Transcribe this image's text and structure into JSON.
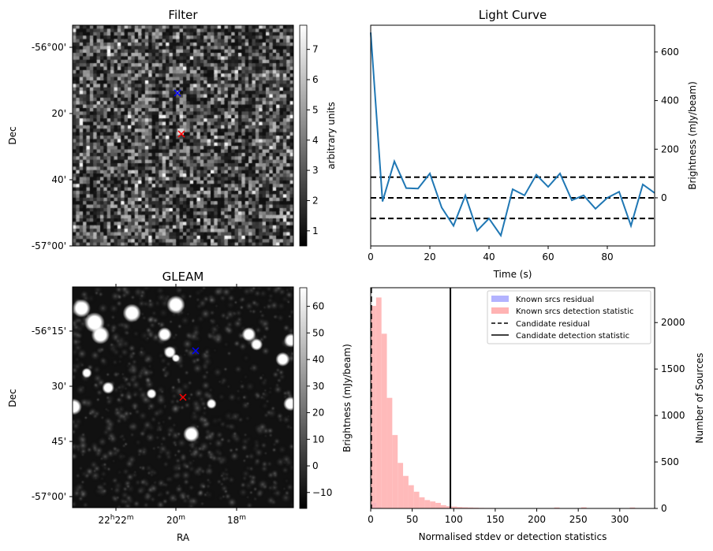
{
  "panels": {
    "filter": {
      "title": "Filter",
      "ylabel": "Dec",
      "dec_ticks": [
        "-56°00'",
        "20'",
        "40'",
        "-57°00'"
      ],
      "colorbar": {
        "label": "arbitrary units",
        "ticks": [
          "1",
          "2",
          "3",
          "4",
          "5",
          "6",
          "7"
        ],
        "range": [
          0.5,
          7.8
        ]
      },
      "markers": [
        {
          "name": "known-source",
          "color": "#0000ff"
        },
        {
          "name": "candidate",
          "color": "#ff0000"
        }
      ]
    },
    "gleam": {
      "title": "GLEAM",
      "ylabel": "Dec",
      "xlabel": "RA",
      "dec_ticks": [
        "-56°15'",
        "30'",
        "45'",
        "-57°00'"
      ],
      "ra_ticks": [
        [
          "22",
          "h",
          "22",
          "m"
        ],
        [
          "20",
          "",
          "",
          "m"
        ],
        [
          "18",
          "",
          "",
          "m"
        ]
      ],
      "colorbar": {
        "label": "Brightness (mJy/beam)",
        "ticks": [
          "60",
          "50",
          "40",
          "30",
          "20",
          "10",
          "0",
          "−10"
        ],
        "range": [
          -16,
          67
        ]
      },
      "markers": [
        {
          "name": "known-source",
          "color": "#0000ff"
        },
        {
          "name": "candidate",
          "color": "#ff0000"
        }
      ]
    }
  },
  "chart_data": [
    {
      "type": "line",
      "title": "Light Curve",
      "xlabel": "Time (s)",
      "ylabel": "Brightness (mJy/beam)",
      "xlim": [
        0,
        96
      ],
      "ylim": [
        -198,
        710
      ],
      "xticks": [
        0,
        20,
        40,
        60,
        80
      ],
      "yticks": [
        0,
        200,
        400,
        600
      ],
      "series": [
        {
          "name": "light curve",
          "color": "#1f77b4",
          "x": [
            0,
            4,
            8,
            12,
            16,
            20,
            24,
            28,
            32,
            36,
            40,
            44,
            48,
            52,
            56,
            60,
            64,
            68,
            72,
            76,
            80,
            84,
            88,
            92,
            96
          ],
          "y": [
            680,
            -15,
            150,
            40,
            38,
            100,
            -40,
            -115,
            10,
            -135,
            -85,
            -155,
            35,
            10,
            95,
            45,
            100,
            -10,
            10,
            -45,
            0,
            25,
            -115,
            55,
            20
          ]
        }
      ],
      "hlines": [
        {
          "y": 85,
          "style": "dashed"
        },
        {
          "y": 0,
          "style": "dashed"
        },
        {
          "y": -85,
          "style": "dashed"
        }
      ]
    },
    {
      "type": "bar",
      "subtype": "histogram",
      "xlabel": "Normalised stdev or detection statistics",
      "ylabel": "Number of Sources",
      "ylabel_left": "Brightness (mJy/beam)",
      "xlim": [
        0,
        342
      ],
      "ylim": [
        0,
        2375
      ],
      "xticks": [
        0,
        50,
        100,
        150,
        200,
        250,
        300
      ],
      "yticks": [
        0,
        500,
        1000,
        1500,
        2000
      ],
      "bin_width": 6.5,
      "series": [
        {
          "name": "Known srcs residual",
          "color": "#b3b3ff",
          "bin_start": 0,
          "values": [
            60,
            15
          ]
        },
        {
          "name": "Known srcs detection statistic",
          "color": "#ffb3b3",
          "bin_start": 0,
          "values": [
            2180,
            2270,
            1880,
            1190,
            790,
            490,
            350,
            250,
            180,
            120,
            90,
            75,
            60,
            35,
            25,
            20,
            15,
            12,
            10,
            8,
            6,
            5,
            5,
            4,
            4,
            3,
            3,
            3,
            3,
            3,
            3,
            3,
            2,
            0,
            10,
            0,
            0,
            0,
            0,
            12,
            0,
            0,
            0,
            0,
            0,
            0,
            0,
            0,
            10
          ]
        }
      ],
      "vlines": [
        {
          "name": "Candidate residual",
          "x": 0.6,
          "style": "dashed"
        },
        {
          "name": "Candidate detection statistic",
          "x": 96,
          "style": "solid"
        }
      ],
      "legend": {
        "position": "top-right",
        "entries": [
          "Known srcs residual",
          "Known srcs detection statistic",
          "Candidate residual",
          "Candidate detection statistic"
        ]
      }
    }
  ]
}
